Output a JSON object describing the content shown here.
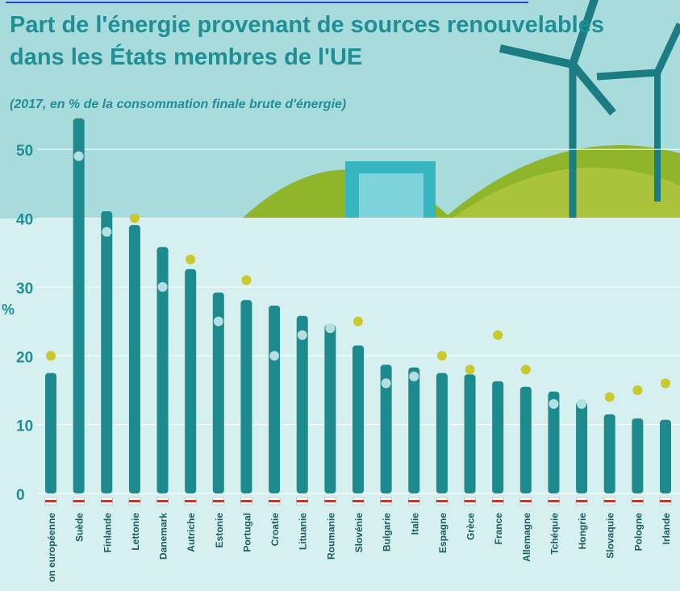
{
  "chart_data": {
    "type": "bar",
    "title": "Part de l'énergie provenant de sources renouvelables",
    "title_line2": "dans les États membres de l'UE",
    "subtitle": "(2017, en % de la consommation finale brute d'énergie)",
    "y_label": "%",
    "categories": [
      "on européenne",
      "Suède",
      "Finlande",
      "Lettonie",
      "Danemark",
      "Autriche",
      "Estonie",
      "Portugal",
      "Croatie",
      "Lituanie",
      "Roumanie",
      "Slovénie",
      "Bulgarie",
      "Italie",
      "Espagne",
      "Grèce",
      "France",
      "Allemagne",
      "Tchéquie",
      "Hongrie",
      "Slovaquie",
      "Pologne",
      "Irlande"
    ],
    "series": [
      {
        "color": "#1d8a8e",
        "values": [
          17.5,
          54.5,
          41,
          39,
          35.8,
          32.6,
          29.2,
          28.1,
          27.3,
          25.8,
          24.5,
          21.5,
          18.7,
          18.3,
          17.5,
          17.3,
          16.3,
          15.5,
          14.8,
          13.3,
          11.5,
          10.9,
          10.7
        ]
      },
      {
        "type": "dot",
        "colors": [
          "#c9c92e",
          "#b4dfe0",
          "#b4dfe0",
          "#c9c92e",
          "#b4dfe0",
          "#c9c92e",
          "#b4dfe0",
          "#c9c92e",
          "#b4dfe0",
          "#b4dfe0",
          "#b4dfe0",
          "#c9c92e",
          "#b4dfe0",
          "#b4dfe0",
          "#c9c92e",
          "#c9c92e",
          "#c9c92e",
          "#c9c92e",
          "#b4dfe0",
          "#b4dfe0",
          "#c9c92e",
          "#c9c92e",
          "#c9c92e"
        ],
        "values": [
          20,
          49,
          38,
          40,
          30,
          34,
          25,
          31,
          20,
          23,
          24,
          25,
          16,
          17,
          20,
          18,
          23,
          18,
          13,
          13,
          14,
          15,
          16
        ]
      }
    ],
    "ylim": [
      0,
      56
    ],
    "yticks": [
      0,
      10,
      20,
      30,
      40,
      50
    ],
    "grid": true
  }
}
